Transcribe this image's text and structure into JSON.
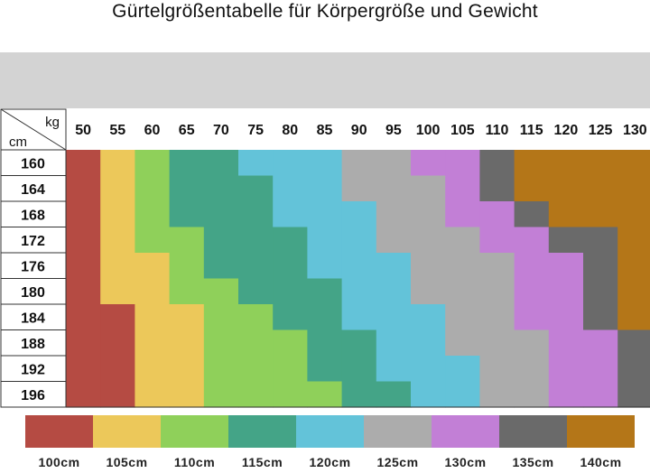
{
  "chart_data": {
    "type": "heatmap",
    "title": "Gürtelgrößentabelle für Körpergröße und Gewicht",
    "x_unit": "kg",
    "y_unit": "cm",
    "x": [
      "50",
      "55",
      "60",
      "65",
      "70",
      "75",
      "80",
      "85",
      "90",
      "95",
      "100",
      "105",
      "110",
      "115",
      "120",
      "125",
      "130"
    ],
    "y": [
      "160",
      "164",
      "168",
      "172",
      "176",
      "180",
      "184",
      "188",
      "192",
      "196"
    ],
    "sizes": [
      "100cm",
      "105cm",
      "110cm",
      "115cm",
      "120cm",
      "125cm",
      "130cm",
      "135cm",
      "140cm"
    ],
    "colors": {
      "100cm": "#b54b43",
      "105cm": "#ecc85a",
      "110cm": "#8fd05a",
      "115cm": "#44a487",
      "120cm": "#63c3d9",
      "125cm": "#acacac",
      "130cm": "#c27fd6",
      "135cm": "#6a6a6a",
      "140cm": "#b47618"
    },
    "cells": [
      [
        "100cm",
        "105cm",
        "110cm",
        "115cm",
        "115cm",
        "120cm",
        "120cm",
        "120cm",
        "125cm",
        "125cm",
        "130cm",
        "130cm",
        "135cm",
        "140cm",
        "140cm",
        "140cm",
        "140cm"
      ],
      [
        "100cm",
        "105cm",
        "110cm",
        "115cm",
        "115cm",
        "115cm",
        "120cm",
        "120cm",
        "125cm",
        "125cm",
        "125cm",
        "130cm",
        "135cm",
        "140cm",
        "140cm",
        "140cm",
        "140cm"
      ],
      [
        "100cm",
        "105cm",
        "110cm",
        "115cm",
        "115cm",
        "115cm",
        "120cm",
        "120cm",
        "120cm",
        "125cm",
        "125cm",
        "130cm",
        "130cm",
        "135cm",
        "140cm",
        "140cm",
        "140cm"
      ],
      [
        "100cm",
        "105cm",
        "110cm",
        "110cm",
        "115cm",
        "115cm",
        "115cm",
        "120cm",
        "120cm",
        "125cm",
        "125cm",
        "125cm",
        "130cm",
        "130cm",
        "135cm",
        "135cm",
        "140cm"
      ],
      [
        "100cm",
        "105cm",
        "105cm",
        "110cm",
        "115cm",
        "115cm",
        "115cm",
        "120cm",
        "120cm",
        "120cm",
        "125cm",
        "125cm",
        "125cm",
        "130cm",
        "130cm",
        "135cm",
        "140cm"
      ],
      [
        "100cm",
        "105cm",
        "105cm",
        "110cm",
        "110cm",
        "115cm",
        "115cm",
        "115cm",
        "120cm",
        "120cm",
        "125cm",
        "125cm",
        "125cm",
        "130cm",
        "130cm",
        "135cm",
        "140cm"
      ],
      [
        "100cm",
        "100cm",
        "105cm",
        "105cm",
        "110cm",
        "110cm",
        "115cm",
        "115cm",
        "120cm",
        "120cm",
        "120cm",
        "125cm",
        "125cm",
        "130cm",
        "130cm",
        "135cm",
        "140cm"
      ],
      [
        "100cm",
        "100cm",
        "105cm",
        "105cm",
        "110cm",
        "110cm",
        "110cm",
        "115cm",
        "115cm",
        "120cm",
        "120cm",
        "125cm",
        "125cm",
        "125cm",
        "130cm",
        "130cm",
        "135cm"
      ],
      [
        "100cm",
        "100cm",
        "105cm",
        "105cm",
        "110cm",
        "110cm",
        "110cm",
        "115cm",
        "115cm",
        "120cm",
        "120cm",
        "120cm",
        "125cm",
        "125cm",
        "130cm",
        "130cm",
        "135cm"
      ],
      [
        "100cm",
        "100cm",
        "105cm",
        "105cm",
        "110cm",
        "110cm",
        "110cm",
        "110cm",
        "115cm",
        "115cm",
        "120cm",
        "120cm",
        "125cm",
        "125cm",
        "130cm",
        "130cm",
        "135cm"
      ]
    ]
  }
}
